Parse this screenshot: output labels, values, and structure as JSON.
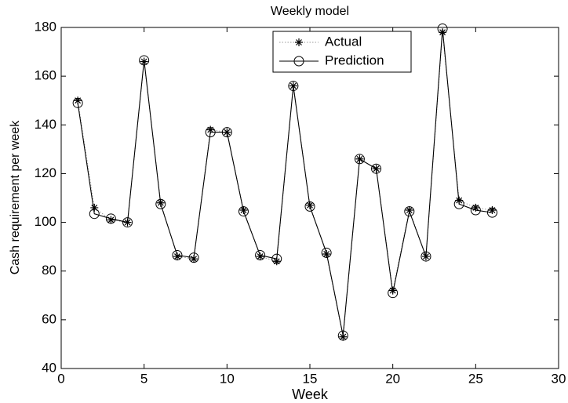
{
  "chart_data": {
    "type": "line",
    "title": "Weekly model",
    "x_label": "Week",
    "y_label": "Cash requirement  per week",
    "x": [
      1,
      2,
      3,
      4,
      5,
      6,
      7,
      8,
      9,
      10,
      11,
      12,
      13,
      14,
      15,
      16,
      17,
      18,
      19,
      20,
      21,
      22,
      23,
      24,
      25,
      26
    ],
    "series": [
      {
        "name": "Actual",
        "color": "#9a9a9a",
        "marker": "asterisk",
        "line_style": "dotted",
        "values": [
          150,
          106,
          101,
          100,
          166,
          108,
          86,
          85,
          138,
          137,
          105,
          86,
          84,
          156,
          107,
          87,
          53,
          126,
          122,
          72,
          105,
          86,
          178,
          109,
          106,
          105
        ]
      },
      {
        "name": "Prediction",
        "color": "#000000",
        "marker": "circle",
        "line_style": "solid",
        "values": [
          149,
          103.5,
          101.5,
          100,
          166.5,
          107.5,
          86.5,
          85.5,
          137,
          137,
          104.5,
          86.5,
          85,
          156,
          106.5,
          87.5,
          53.5,
          126,
          122,
          71,
          104.5,
          86,
          179.5,
          107.5,
          105,
          104
        ]
      }
    ],
    "xlim": [
      0,
      30
    ],
    "xticks": [
      0,
      5,
      10,
      15,
      20,
      25,
      30
    ],
    "ylim": [
      40,
      180
    ],
    "yticks": [
      40,
      60,
      80,
      100,
      120,
      140,
      160,
      180
    ],
    "legend": "north",
    "grid": false
  }
}
